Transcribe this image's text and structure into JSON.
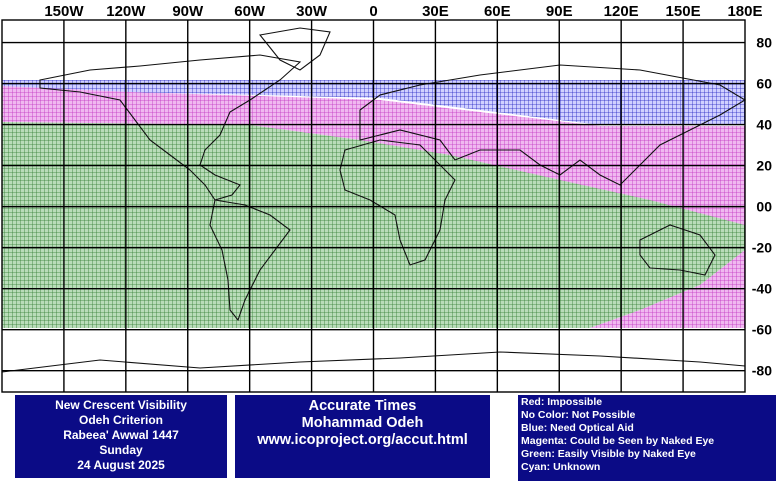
{
  "map": {
    "lon_labels": [
      "150W",
      "120W",
      "90W",
      "60W",
      "30W",
      "0",
      "30E",
      "60E",
      "90E",
      "120E",
      "150E",
      "180E"
    ],
    "lat_labels": [
      "80",
      "60",
      "40",
      "20",
      "00",
      "-20",
      "-40",
      "-60",
      "-80"
    ],
    "info_left": [
      "New Crescent Visibility",
      "Odeh Criterion",
      "Rabeea' Awwal 1447",
      "Sunday",
      "24 August 2025"
    ],
    "info_center": [
      "Accurate Times",
      "Mohammad Odeh",
      "www.icoproject.org/accut.html"
    ],
    "legend": [
      "Red: Impossible",
      "No Color: Not Possible",
      "Blue: Need Optical Aid",
      "Magenta: Could be Seen by Naked Eye",
      "Green: Easily Visible by Naked Eye",
      "Cyan: Unknown"
    ]
  }
}
